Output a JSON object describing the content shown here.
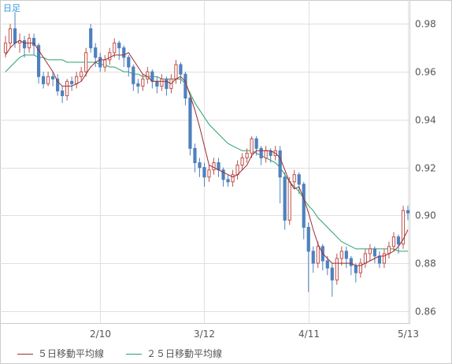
{
  "chart_data": {
    "type": "candlestick",
    "period_label": "日足",
    "x_tick_labels": [
      "2/10",
      "3/12",
      "4/11",
      "5/13"
    ],
    "y_ticks": [
      0.98,
      0.96,
      0.94,
      0.92,
      0.9,
      0.88,
      0.86
    ],
    "y_tick_labels": [
      "0.98",
      "0.96",
      "0.94",
      "0.92",
      "0.90",
      "0.88",
      "0.86"
    ],
    "ylim": [
      0.855,
      0.99
    ],
    "grid": true,
    "colors": {
      "up": "#c0504d",
      "down": "#4f81bd",
      "ma5": "#9b2d2d",
      "ma25": "#2ca26a",
      "grid": "#e0e0e0",
      "label": "#555555",
      "period_label": "#3a9ad9"
    },
    "series": [
      {
        "name": "５日移動平均線",
        "color": "#9b2d2d"
      },
      {
        "name": "２５日移動平均線",
        "color": "#2ca26a"
      }
    ],
    "candles": [
      [
        0.968,
        0.972,
        0.966,
        0.975
      ],
      [
        0.972,
        0.978,
        0.97,
        0.98
      ],
      [
        0.978,
        0.972,
        0.97,
        0.985
      ],
      [
        0.972,
        0.973,
        0.968,
        0.976
      ],
      [
        0.973,
        0.97,
        0.966,
        0.975
      ],
      [
        0.97,
        0.974,
        0.968,
        0.976
      ],
      [
        0.974,
        0.971,
        0.967,
        0.976
      ],
      [
        0.971,
        0.958,
        0.955,
        0.972
      ],
      [
        0.958,
        0.955,
        0.953,
        0.96
      ],
      [
        0.955,
        0.958,
        0.954,
        0.96
      ],
      [
        0.958,
        0.957,
        0.954,
        0.96
      ],
      [
        0.957,
        0.952,
        0.95,
        0.959
      ],
      [
        0.952,
        0.95,
        0.947,
        0.954
      ],
      [
        0.95,
        0.956,
        0.948,
        0.957
      ],
      [
        0.956,
        0.955,
        0.952,
        0.958
      ],
      [
        0.955,
        0.958,
        0.953,
        0.96
      ],
      [
        0.958,
        0.96,
        0.956,
        0.962
      ],
      [
        0.96,
        0.968,
        0.958,
        0.97
      ],
      [
        0.978,
        0.97,
        0.968,
        0.98
      ],
      [
        0.97,
        0.966,
        0.962,
        0.972
      ],
      [
        0.966,
        0.962,
        0.96,
        0.968
      ],
      [
        0.962,
        0.965,
        0.96,
        0.967
      ],
      [
        0.965,
        0.968,
        0.963,
        0.97
      ],
      [
        0.968,
        0.972,
        0.966,
        0.974
      ],
      [
        0.972,
        0.97,
        0.965,
        0.973
      ],
      [
        0.97,
        0.966,
        0.962,
        0.971
      ],
      [
        0.966,
        0.962,
        0.958,
        0.967
      ],
      [
        0.962,
        0.955,
        0.952,
        0.963
      ],
      [
        0.955,
        0.954,
        0.951,
        0.957
      ],
      [
        0.954,
        0.957,
        0.952,
        0.959
      ],
      [
        0.957,
        0.96,
        0.955,
        0.962
      ],
      [
        0.96,
        0.956,
        0.953,
        0.961
      ],
      [
        0.956,
        0.954,
        0.951,
        0.958
      ],
      [
        0.954,
        0.957,
        0.952,
        0.959
      ],
      [
        0.957,
        0.953,
        0.95,
        0.958
      ],
      [
        0.953,
        0.957,
        0.951,
        0.959
      ],
      [
        0.957,
        0.963,
        0.955,
        0.965
      ],
      [
        0.963,
        0.959,
        0.955,
        0.964
      ],
      [
        0.959,
        0.949,
        0.946,
        0.96
      ],
      [
        0.949,
        0.928,
        0.925,
        0.95
      ],
      [
        0.928,
        0.922,
        0.918,
        0.93
      ],
      [
        0.922,
        0.92,
        0.916,
        0.924
      ],
      [
        0.92,
        0.916,
        0.912,
        0.922
      ],
      [
        0.916,
        0.919,
        0.914,
        0.921
      ],
      [
        0.919,
        0.922,
        0.917,
        0.924
      ],
      [
        0.922,
        0.919,
        0.916,
        0.924
      ],
      [
        0.919,
        0.915,
        0.912,
        0.92
      ],
      [
        0.915,
        0.914,
        0.912,
        0.917
      ],
      [
        0.914,
        0.917,
        0.912,
        0.919
      ],
      [
        0.917,
        0.921,
        0.915,
        0.923
      ],
      [
        0.921,
        0.924,
        0.919,
        0.926
      ],
      [
        0.924,
        0.926,
        0.922,
        0.928
      ],
      [
        0.926,
        0.932,
        0.924,
        0.933
      ],
      [
        0.932,
        0.928,
        0.925,
        0.933
      ],
      [
        0.928,
        0.924,
        0.921,
        0.929
      ],
      [
        0.924,
        0.927,
        0.922,
        0.929
      ],
      [
        0.927,
        0.925,
        0.922,
        0.928
      ],
      [
        0.925,
        0.927,
        0.923,
        0.929
      ],
      [
        0.927,
        0.916,
        0.905,
        0.929
      ],
      [
        0.916,
        0.898,
        0.894,
        0.918
      ],
      [
        0.898,
        0.914,
        0.896,
        0.916
      ],
      [
        0.914,
        0.917,
        0.911,
        0.919
      ],
      [
        0.917,
        0.913,
        0.909,
        0.918
      ],
      [
        0.913,
        0.895,
        0.89,
        0.914
      ],
      [
        0.895,
        0.885,
        0.868,
        0.897
      ],
      [
        0.885,
        0.88,
        0.876,
        0.887
      ],
      [
        0.88,
        0.887,
        0.878,
        0.889
      ],
      [
        0.887,
        0.881,
        0.877,
        0.888
      ],
      [
        0.881,
        0.878,
        0.875,
        0.883
      ],
      [
        0.878,
        0.873,
        0.866,
        0.88
      ],
      [
        0.873,
        0.882,
        0.871,
        0.884
      ],
      [
        0.882,
        0.885,
        0.879,
        0.887
      ],
      [
        0.885,
        0.882,
        0.878,
        0.887
      ],
      [
        0.882,
        0.879,
        0.875,
        0.883
      ],
      [
        0.879,
        0.876,
        0.872,
        0.88
      ],
      [
        0.876,
        0.88,
        0.874,
        0.882
      ],
      [
        0.88,
        0.884,
        0.878,
        0.886
      ],
      [
        0.884,
        0.886,
        0.881,
        0.888
      ],
      [
        0.886,
        0.883,
        0.88,
        0.887
      ],
      [
        0.883,
        0.88,
        0.878,
        0.885
      ],
      [
        0.88,
        0.884,
        0.878,
        0.886
      ],
      [
        0.884,
        0.887,
        0.882,
        0.889
      ],
      [
        0.887,
        0.891,
        0.885,
        0.893
      ],
      [
        0.891,
        0.888,
        0.884,
        0.892
      ],
      [
        0.888,
        0.902,
        0.886,
        0.904
      ],
      [
        0.902,
        0.901,
        0.898,
        0.904
      ]
    ],
    "ma5": [
      0.967,
      0.97,
      0.972,
      0.973,
      0.972,
      0.972,
      0.972,
      0.969,
      0.966,
      0.963,
      0.96,
      0.956,
      0.954,
      0.954,
      0.954,
      0.955,
      0.956,
      0.959,
      0.962,
      0.964,
      0.965,
      0.965,
      0.966,
      0.967,
      0.967,
      0.967,
      0.968,
      0.965,
      0.962,
      0.959,
      0.958,
      0.956,
      0.956,
      0.956,
      0.956,
      0.955,
      0.957,
      0.958,
      0.956,
      0.95,
      0.944,
      0.937,
      0.929,
      0.921,
      0.92,
      0.919,
      0.918,
      0.917,
      0.916,
      0.917,
      0.919,
      0.921,
      0.925,
      0.927,
      0.927,
      0.927,
      0.927,
      0.926,
      0.924,
      0.919,
      0.914,
      0.911,
      0.912,
      0.907,
      0.901,
      0.894,
      0.888,
      0.884,
      0.882,
      0.88,
      0.88,
      0.88,
      0.88,
      0.88,
      0.879,
      0.879,
      0.88,
      0.881,
      0.882,
      0.883,
      0.883,
      0.884,
      0.885,
      0.887,
      0.89,
      0.894
    ],
    "ma25": [
      0.96,
      0.962,
      0.964,
      0.966,
      0.967,
      0.967,
      0.967,
      0.966,
      0.966,
      0.965,
      0.965,
      0.965,
      0.965,
      0.964,
      0.964,
      0.964,
      0.964,
      0.964,
      0.964,
      0.964,
      0.963,
      0.963,
      0.962,
      0.962,
      0.961,
      0.96,
      0.96,
      0.959,
      0.959,
      0.958,
      0.958,
      0.958,
      0.958,
      0.957,
      0.957,
      0.957,
      0.957,
      0.957,
      0.955,
      0.951,
      0.947,
      0.944,
      0.941,
      0.938,
      0.936,
      0.934,
      0.932,
      0.93,
      0.929,
      0.928,
      0.927,
      0.927,
      0.927,
      0.926,
      0.925,
      0.924,
      0.923,
      0.922,
      0.92,
      0.917,
      0.914,
      0.912,
      0.91,
      0.907,
      0.904,
      0.902,
      0.899,
      0.897,
      0.895,
      0.893,
      0.891,
      0.889,
      0.888,
      0.887,
      0.886,
      0.886,
      0.886,
      0.886,
      0.886,
      0.886,
      0.886,
      0.886,
      0.886,
      0.885,
      0.885,
      0.885
    ]
  }
}
